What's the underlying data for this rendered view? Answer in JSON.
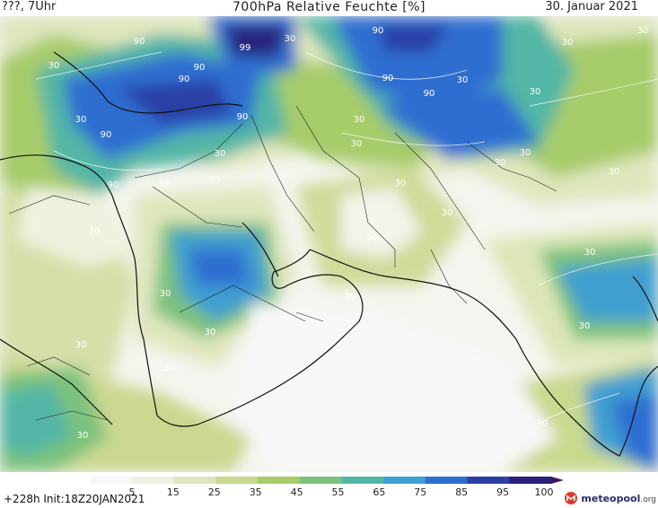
{
  "header": {
    "left": "???, 7Uhr",
    "title": "700hPa Relative Feuchte [%]",
    "date": "30. Januar 2021"
  },
  "map": {
    "contour_labels": [
      {
        "text": "30",
        "pos": [
          60,
          55
        ]
      },
      {
        "text": "30",
        "pos": [
          90,
          115
        ]
      },
      {
        "text": "90",
        "pos": [
          155,
          28
        ]
      },
      {
        "text": "99",
        "pos": [
          273,
          35
        ]
      },
      {
        "text": "30",
        "pos": [
          323,
          25
        ]
      },
      {
        "text": "90",
        "pos": [
          222,
          57
        ]
      },
      {
        "text": "90",
        "pos": [
          205,
          70
        ]
      },
      {
        "text": "90",
        "pos": [
          270,
          112
        ]
      },
      {
        "text": "90",
        "pos": [
          118,
          132
        ]
      },
      {
        "text": "90",
        "pos": [
          126,
          188
        ]
      },
      {
        "text": "30",
        "pos": [
          182,
          187
        ]
      },
      {
        "text": "30",
        "pos": [
          245,
          153
        ]
      },
      {
        "text": "30",
        "pos": [
          239,
          182
        ]
      },
      {
        "text": "30",
        "pos": [
          400,
          115
        ]
      },
      {
        "text": "30",
        "pos": [
          397,
          142
        ]
      },
      {
        "text": "90",
        "pos": [
          421,
          16
        ]
      },
      {
        "text": "90",
        "pos": [
          432,
          69
        ]
      },
      {
        "text": "90",
        "pos": [
          478,
          86
        ]
      },
      {
        "text": "30",
        "pos": [
          515,
          71
        ]
      },
      {
        "text": "30",
        "pos": [
          596,
          84
        ]
      },
      {
        "text": "30",
        "pos": [
          632,
          29
        ]
      },
      {
        "text": "30",
        "pos": [
          716,
          16
        ]
      },
      {
        "text": "30",
        "pos": [
          585,
          152
        ]
      },
      {
        "text": "30",
        "pos": [
          557,
          163
        ]
      },
      {
        "text": "30",
        "pos": [
          684,
          173
        ]
      },
      {
        "text": "30",
        "pos": [
          446,
          186
        ]
      },
      {
        "text": "30",
        "pos": [
          498,
          219
        ]
      },
      {
        "text": "30",
        "pos": [
          414,
          247
        ]
      },
      {
        "text": "30",
        "pos": [
          105,
          239
        ]
      },
      {
        "text": "30",
        "pos": [
          184,
          309
        ]
      },
      {
        "text": "30",
        "pos": [
          390,
          313
        ]
      },
      {
        "text": "30",
        "pos": [
          657,
          263
        ]
      },
      {
        "text": "30",
        "pos": [
          651,
          345
        ]
      },
      {
        "text": "30",
        "pos": [
          90,
          366
        ]
      },
      {
        "text": "30",
        "pos": [
          234,
          352
        ]
      },
      {
        "text": "30",
        "pos": [
          189,
          392
        ]
      },
      {
        "text": "30",
        "pos": [
          92,
          467
        ]
      },
      {
        "text": "30",
        "pos": [
          604,
          454
        ]
      }
    ]
  },
  "colorbar": {
    "ticks": [
      "5",
      "15",
      "25",
      "35",
      "45",
      "55",
      "65",
      "75",
      "85",
      "95",
      "100"
    ],
    "colors": [
      "#f7f7f7",
      "#eef0e4",
      "#dfe6bd",
      "#c9d98e",
      "#a7cc6a",
      "#7cc27d",
      "#52b6a6",
      "#3f9fd0",
      "#2d6ed1",
      "#2c3fa6",
      "#2a207a",
      "#3c1460"
    ]
  },
  "footer": {
    "left": "+228h  Init:18Z20JAN2021",
    "logo_name": "meteopool",
    "logo_tld": ".org",
    "logo_icon": "meteopool-logo-icon"
  }
}
